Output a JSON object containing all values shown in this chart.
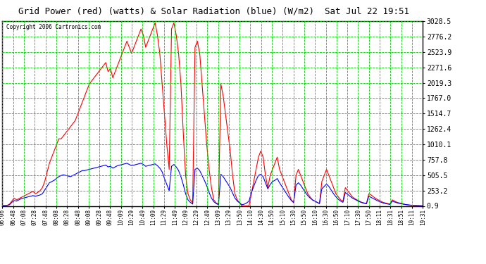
{
  "title": "Grid Power (red) (watts) & Solar Radiation (blue) (W/m2)  Sat Jul 22 19:51",
  "copyright": "Copyright 2006 Cartronics.com",
  "yticks": [
    0.9,
    253.2,
    505.5,
    757.8,
    1010.1,
    1262.4,
    1514.7,
    1767.0,
    2019.3,
    2271.6,
    2523.9,
    2776.2,
    3028.5
  ],
  "ymin": 0.9,
  "ymax": 3028.5,
  "xtick_labels": [
    "06:06",
    "06:48",
    "07:08",
    "07:28",
    "07:48",
    "08:08",
    "08:28",
    "08:48",
    "09:08",
    "09:28",
    "09:48",
    "10:09",
    "10:29",
    "10:49",
    "11:09",
    "11:29",
    "11:49",
    "12:09",
    "12:29",
    "12:49",
    "13:09",
    "13:29",
    "13:50",
    "14:10",
    "14:30",
    "14:50",
    "15:10",
    "15:30",
    "15:50",
    "16:10",
    "16:30",
    "16:50",
    "17:10",
    "17:30",
    "17:50",
    "18:11",
    "18:31",
    "18:51",
    "19:11",
    "19:31"
  ],
  "background_color": "#ffffff",
  "figure_background": "#ffffff",
  "grid_color": "#00cc00",
  "title_color": "#000000",
  "red_line_color": "#ff0000",
  "blue_line_color": "#0000ff",
  "red_data": [
    5,
    8,
    10,
    30,
    80,
    130,
    100,
    120,
    140,
    160,
    180,
    200,
    220,
    240,
    200,
    220,
    250,
    300,
    400,
    550,
    700,
    800,
    900,
    1000,
    1100,
    1100,
    1150,
    1200,
    1250,
    1300,
    1350,
    1400,
    1500,
    1600,
    1700,
    1800,
    1900,
    2000,
    2050,
    2100,
    2150,
    2200,
    2250,
    2300,
    2350,
    2200,
    2250,
    2100,
    2200,
    2300,
    2400,
    2500,
    2600,
    2700,
    2600,
    2500,
    2600,
    2700,
    2800,
    2900,
    2800,
    2600,
    2700,
    2800,
    2900,
    3000,
    2800,
    2500,
    2000,
    1500,
    1000,
    600,
    2900,
    3000,
    2800,
    2500,
    2000,
    1200,
    500,
    200,
    100,
    50,
    2600,
    2700,
    2500,
    2000,
    1500,
    1000,
    600,
    300,
    100,
    50,
    30,
    2000,
    1800,
    1500,
    1200,
    900,
    500,
    200,
    100,
    50,
    0,
    0,
    0,
    0,
    200,
    400,
    600,
    800,
    900,
    800,
    500,
    300,
    500,
    600,
    700,
    800,
    600,
    500,
    400,
    300,
    200,
    100,
    50,
    500,
    600,
    500,
    400,
    300,
    200,
    150,
    100,
    80,
    60,
    40,
    400,
    500,
    600,
    500,
    400,
    300,
    200,
    150,
    100,
    80,
    300,
    250,
    200,
    150,
    120,
    100,
    80,
    60,
    50,
    40,
    200,
    180,
    150,
    120,
    100,
    80,
    60,
    50,
    40,
    30,
    100,
    80,
    60,
    50,
    40,
    30,
    20,
    15,
    10,
    8,
    5,
    3,
    2,
    1
  ],
  "blue_data": [
    3,
    5,
    8,
    20,
    60,
    90,
    80,
    100,
    120,
    130,
    140,
    150,
    160,
    170,
    160,
    170,
    180,
    200,
    260,
    320,
    380,
    400,
    420,
    450,
    480,
    500,
    510,
    500,
    490,
    480,
    500,
    520,
    540,
    560,
    580,
    580,
    590,
    600,
    610,
    620,
    630,
    640,
    650,
    660,
    670,
    640,
    650,
    620,
    640,
    660,
    670,
    680,
    690,
    700,
    680,
    660,
    670,
    680,
    690,
    700,
    680,
    650,
    660,
    670,
    680,
    690,
    660,
    620,
    560,
    450,
    350,
    250,
    650,
    680,
    640,
    580,
    480,
    350,
    200,
    100,
    60,
    30,
    600,
    620,
    580,
    500,
    420,
    330,
    220,
    130,
    70,
    40,
    20,
    520,
    480,
    420,
    360,
    300,
    210,
    130,
    80,
    50,
    20,
    30,
    50,
    80,
    220,
    320,
    420,
    500,
    520,
    480,
    380,
    280,
    350,
    400,
    420,
    450,
    380,
    320,
    260,
    200,
    140,
    90,
    60,
    340,
    380,
    340,
    280,
    220,
    170,
    130,
    100,
    80,
    60,
    40,
    280,
    320,
    360,
    320,
    260,
    200,
    150,
    110,
    80,
    60,
    220,
    190,
    160,
    130,
    110,
    90,
    70,
    55,
    45,
    35,
    160,
    140,
    120,
    100,
    80,
    65,
    50,
    40,
    32,
    25,
    80,
    65,
    52,
    42,
    34,
    27,
    22,
    17,
    13,
    10,
    8,
    6,
    5,
    3
  ]
}
